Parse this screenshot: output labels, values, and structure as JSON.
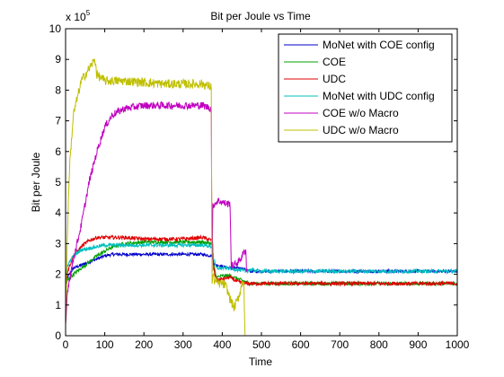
{
  "chart_data": {
    "type": "line",
    "title": "Bit per Joule vs Time",
    "xlabel": "Time",
    "ylabel": "Bit per Joule",
    "y_scale_label_prefix": "x 10",
    "y_scale_label_exponent": "5",
    "xlim": [
      0,
      1000
    ],
    "ylim": [
      0,
      10
    ],
    "xticks": [
      0,
      100,
      200,
      300,
      400,
      500,
      600,
      700,
      800,
      900,
      1000
    ],
    "yticks": [
      0,
      1,
      2,
      3,
      4,
      5,
      6,
      7,
      8,
      9,
      10
    ],
    "grid": false,
    "legend_position": "top-right",
    "series": [
      {
        "name": "MoNet with COE config",
        "color": "#0000cc",
        "noise": 0.05,
        "x": [
          0,
          5,
          20,
          40,
          60,
          80,
          100,
          120,
          150,
          200,
          250,
          300,
          350,
          375,
          378,
          382,
          390,
          400,
          420,
          450,
          460,
          470,
          500,
          600,
          700,
          800,
          900,
          1000
        ],
        "y": [
          1.6,
          1.9,
          2.2,
          2.3,
          2.4,
          2.5,
          2.6,
          2.65,
          2.65,
          2.65,
          2.65,
          2.65,
          2.65,
          2.6,
          2.4,
          2.3,
          2.3,
          2.25,
          2.2,
          2.2,
          2.15,
          2.1,
          2.1,
          2.1,
          2.1,
          2.1,
          2.1,
          2.1
        ]
      },
      {
        "name": "COE",
        "color": "#00a000",
        "noise": 0.06,
        "x": [
          0,
          5,
          20,
          40,
          60,
          80,
          100,
          120,
          150,
          200,
          250,
          300,
          350,
          375,
          378,
          385,
          400,
          420,
          440,
          460,
          470,
          500,
          600,
          700,
          800,
          900,
          1000
        ],
        "y": [
          1.6,
          1.8,
          2.0,
          2.2,
          2.4,
          2.6,
          2.75,
          2.9,
          3.0,
          3.05,
          3.05,
          3.05,
          3.05,
          3.0,
          2.3,
          1.9,
          1.95,
          1.95,
          1.85,
          1.75,
          1.7,
          1.7,
          1.7,
          1.7,
          1.7,
          1.7,
          1.7
        ]
      },
      {
        "name": "UDC",
        "color": "#e00000",
        "noise": 0.06,
        "x": [
          0,
          5,
          20,
          40,
          60,
          80,
          100,
          120,
          150,
          200,
          250,
          300,
          350,
          375,
          378,
          385,
          400,
          420,
          440,
          460,
          470,
          500,
          600,
          700,
          800,
          900,
          1000
        ],
        "y": [
          1.7,
          2.1,
          2.6,
          2.9,
          3.1,
          3.2,
          3.2,
          3.2,
          3.2,
          3.15,
          3.15,
          3.15,
          3.2,
          3.1,
          2.2,
          1.8,
          1.85,
          1.9,
          1.75,
          1.7,
          1.7,
          1.7,
          1.7,
          1.7,
          1.7,
          1.7,
          1.7
        ]
      },
      {
        "name": "MoNet with UDC config",
        "color": "#00bfbf",
        "noise": 0.06,
        "x": [
          0,
          5,
          20,
          40,
          60,
          80,
          100,
          120,
          150,
          200,
          250,
          300,
          350,
          375,
          378,
          385,
          400,
          420,
          440,
          460,
          470,
          500,
          600,
          700,
          800,
          900,
          1000
        ],
        "y": [
          1.9,
          2.3,
          2.6,
          2.8,
          2.85,
          2.9,
          2.95,
          2.95,
          2.95,
          2.95,
          2.95,
          2.95,
          2.95,
          2.9,
          2.5,
          2.2,
          2.2,
          2.2,
          2.15,
          2.1,
          2.15,
          2.1,
          2.1,
          2.1,
          2.1,
          2.1,
          2.1
        ]
      },
      {
        "name": "COE w/o Macro",
        "color": "#c000c0",
        "noise": 0.12,
        "x": [
          0,
          5,
          20,
          40,
          60,
          80,
          100,
          120,
          150,
          200,
          250,
          300,
          350,
          372,
          374,
          376,
          380,
          390,
          410,
          420,
          423,
          426,
          430,
          440,
          447,
          450,
          455,
          460,
          462,
          464
        ],
        "y": [
          0.3,
          1.5,
          2.5,
          3.6,
          5.0,
          6.0,
          6.8,
          7.2,
          7.4,
          7.5,
          7.5,
          7.5,
          7.5,
          7.4,
          2.0,
          4.2,
          4.3,
          4.4,
          4.3,
          4.3,
          2.2,
          2.3,
          2.3,
          2.4,
          2.5,
          2.6,
          2.7,
          2.8,
          2.2,
          2.1
        ]
      },
      {
        "name": "UDC w/o Macro",
        "color": "#bfbf00",
        "noise": 0.15,
        "x": [
          0,
          5,
          10,
          20,
          40,
          60,
          75,
          80,
          100,
          120,
          150,
          200,
          250,
          300,
          350,
          372,
          374,
          376,
          380,
          390,
          400,
          410,
          420,
          430,
          440,
          447,
          450,
          455,
          458
        ],
        "y": [
          0.3,
          3.5,
          5.5,
          7.2,
          8.3,
          8.7,
          9.0,
          8.5,
          8.3,
          8.3,
          8.3,
          8.25,
          8.2,
          8.2,
          8.2,
          8.1,
          1.6,
          2.0,
          1.8,
          1.7,
          1.7,
          1.6,
          1.2,
          0.9,
          1.2,
          1.5,
          1.7,
          1.8,
          0.0
        ]
      }
    ]
  }
}
